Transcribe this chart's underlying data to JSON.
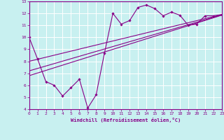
{
  "xlabel": "Windchill (Refroidissement éolien,°C)",
  "ylabel": "",
  "bg_color": "#c8f0f0",
  "line_color": "#880088",
  "grid_color": "#ffffff",
  "xmin": 0,
  "xmax": 23,
  "ymin": 4,
  "ymax": 13,
  "xticks": [
    0,
    1,
    2,
    3,
    4,
    5,
    6,
    7,
    8,
    9,
    10,
    11,
    12,
    13,
    14,
    15,
    16,
    17,
    18,
    19,
    20,
    21,
    22,
    23
  ],
  "yticks": [
    4,
    5,
    6,
    7,
    8,
    9,
    10,
    11,
    12,
    13
  ],
  "main_x": [
    0,
    1,
    2,
    3,
    4,
    5,
    6,
    7,
    8,
    9,
    10,
    11,
    12,
    13,
    14,
    15,
    16,
    17,
    18,
    19,
    20,
    21,
    22,
    23
  ],
  "main_y": [
    10.0,
    8.2,
    6.3,
    6.0,
    5.1,
    5.8,
    6.5,
    4.1,
    5.2,
    8.7,
    12.0,
    11.1,
    11.4,
    12.5,
    12.7,
    12.4,
    11.8,
    12.1,
    11.85,
    11.0,
    11.1,
    11.8,
    11.8,
    11.9
  ],
  "trend1_x": [
    0,
    23
  ],
  "trend1_y": [
    8.0,
    11.9
  ],
  "trend2_x": [
    0,
    23
  ],
  "trend2_y": [
    6.8,
    11.85
  ],
  "trend3_x": [
    0,
    23
  ],
  "trend3_y": [
    7.2,
    11.87
  ]
}
